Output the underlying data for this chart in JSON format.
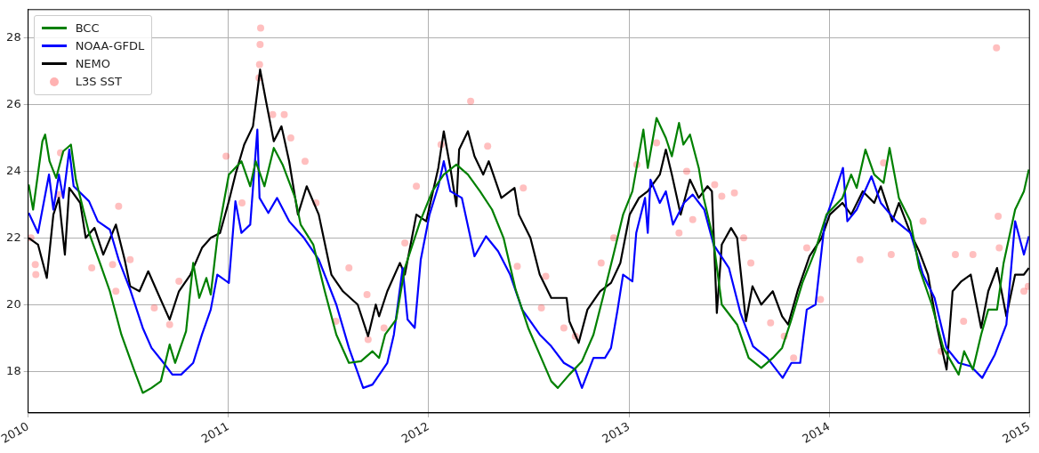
{
  "chart_data": {
    "type": "line",
    "xlim": [
      "2010",
      "2015"
    ],
    "xticks": [
      "2010",
      "2011",
      "2012",
      "2013",
      "2014",
      "2015"
    ],
    "ylim": [
      16.75,
      28.85
    ],
    "yticks": [
      18,
      20,
      22,
      24,
      26,
      28
    ],
    "grid": true,
    "legend": "top left",
    "line_style": "solid",
    "series": [
      {
        "name": "BCC",
        "color": "#008000",
        "x": [
          "2010-01-02",
          "2010-01-10",
          "2010-01-27",
          "2010-02-01",
          "2010-02-09",
          "2010-02-21",
          "2010-03-06",
          "2010-03-20",
          "2010-03-29",
          "2010-04-22",
          "2010-05-13",
          "2010-05-30",
          "2010-06-20",
          "2010-07-13",
          "2010-07-29",
          "2010-08-14",
          "2010-08-31",
          "2010-09-16",
          "2010-09-26",
          "2010-10-16",
          "2010-10-29",
          "2010-11-09",
          "2010-11-22",
          "2010-11-30",
          "2010-12-12",
          "2011-01-02",
          "2011-01-25",
          "2011-02-10",
          "2011-02-20",
          "2011-03-08",
          "2011-03-25",
          "2011-04-10",
          "2011-05-03",
          "2011-05-13",
          "2011-06-05",
          "2011-06-26",
          "2011-07-17",
          "2011-08-09",
          "2011-08-31",
          "2011-09-21",
          "2011-10-03",
          "2011-10-14",
          "2011-11-03",
          "2011-11-19",
          "2011-12-17",
          "2012-01-08",
          "2012-01-29",
          "2012-02-21",
          "2012-03-13",
          "2012-04-04",
          "2012-04-26",
          "2012-05-17",
          "2012-06-08",
          "2012-07-01",
          "2012-07-22",
          "2012-08-12",
          "2012-08-24",
          "2012-09-14",
          "2012-10-07",
          "2012-10-28",
          "2012-11-14",
          "2012-12-05",
          "2012-12-21",
          "2013-01-07",
          "2013-01-27",
          "2013-02-04",
          "2013-02-20",
          "2013-03-09",
          "2013-03-20",
          "2013-04-02",
          "2013-04-10",
          "2013-04-22",
          "2013-05-08",
          "2013-05-17",
          "2013-06-03",
          "2013-06-19",
          "2013-07-17",
          "2013-08-07",
          "2013-08-30",
          "2013-09-20",
          "2013-10-07",
          "2013-10-23",
          "2013-11-13",
          "2013-12-06",
          "2013-12-27",
          "2014-01-25",
          "2014-02-10",
          "2014-02-20",
          "2014-03-08",
          "2014-03-24",
          "2014-04-10",
          "2014-04-21",
          "2014-05-08",
          "2014-05-29",
          "2014-06-14",
          "2014-07-07",
          "2014-07-28",
          "2014-08-25",
          "2014-09-04",
          "2014-09-20",
          "2014-10-05",
          "2014-10-18",
          "2014-11-03",
          "2014-11-15",
          "2014-12-06",
          "2014-12-22",
          "2014-12-31"
        ],
        "values": [
          23.6,
          22.85,
          24.9,
          25.1,
          24.3,
          23.8,
          24.6,
          24.8,
          23.75,
          22.15,
          21.2,
          20.4,
          19.1,
          18.05,
          17.35,
          17.5,
          17.7,
          18.8,
          18.25,
          19.2,
          21.25,
          20.2,
          20.8,
          20.3,
          22.0,
          23.9,
          24.3,
          23.55,
          24.3,
          23.55,
          24.7,
          24.2,
          23.2,
          22.4,
          21.8,
          20.4,
          19.1,
          18.25,
          18.3,
          18.6,
          18.4,
          19.1,
          19.55,
          21.1,
          22.5,
          23.4,
          23.9,
          24.2,
          23.9,
          23.4,
          22.85,
          22.0,
          20.45,
          19.3,
          18.5,
          17.7,
          17.5,
          17.9,
          18.3,
          19.1,
          20.2,
          21.6,
          22.7,
          23.4,
          25.25,
          24.1,
          25.6,
          25.0,
          24.45,
          25.45,
          24.8,
          25.1,
          24.1,
          23.2,
          22.0,
          20.0,
          19.4,
          18.4,
          18.1,
          18.4,
          18.7,
          19.5,
          20.65,
          21.6,
          22.7,
          23.2,
          23.9,
          23.5,
          24.65,
          23.9,
          23.65,
          24.7,
          23.2,
          22.5,
          21.1,
          20.0,
          18.7,
          17.9,
          18.6,
          18.05,
          19.1,
          19.85,
          19.85,
          21.25,
          22.85,
          23.4,
          24.05
        ]
      },
      {
        "name": "NOAA-GFDL",
        "color": "#0000ff",
        "x": [
          "2010-01-02",
          "2010-01-19",
          "2010-02-08",
          "2010-02-16",
          "2010-02-26",
          "2010-03-06",
          "2010-03-17",
          "2010-03-25",
          "2010-04-22",
          "2010-05-08",
          "2010-05-30",
          "2010-06-15",
          "2010-07-06",
          "2010-07-29",
          "2010-08-14",
          "2010-09-05",
          "2010-09-21",
          "2010-10-07",
          "2010-10-29",
          "2010-11-14",
          "2010-11-30",
          "2010-12-12",
          "2011-01-02",
          "2011-01-14",
          "2011-01-25",
          "2011-02-10",
          "2011-02-23",
          "2011-02-27",
          "2011-03-15",
          "2011-03-31",
          "2011-04-22",
          "2011-05-19",
          "2011-06-15",
          "2011-07-17",
          "2011-08-09",
          "2011-09-04",
          "2011-09-21",
          "2011-10-18",
          "2011-10-30",
          "2011-11-15",
          "2011-11-24",
          "2011-12-07",
          "2011-12-18",
          "2012-01-03",
          "2012-01-19",
          "2012-01-29",
          "2012-02-10",
          "2012-03-02",
          "2012-03-25",
          "2012-04-15",
          "2012-05-07",
          "2012-05-29",
          "2012-06-20",
          "2012-07-22",
          "2012-08-12",
          "2012-09-04",
          "2012-09-25",
          "2012-10-07",
          "2012-10-28",
          "2012-11-18",
          "2012-11-29",
          "2012-12-11",
          "2012-12-21",
          "2013-01-07",
          "2013-01-14",
          "2013-01-30",
          "2013-02-04",
          "2013-02-09",
          "2013-02-26",
          "2013-03-09",
          "2013-03-22",
          "2013-04-11",
          "2013-04-27",
          "2013-05-18",
          "2013-06-04",
          "2013-07-02",
          "2013-07-23",
          "2013-08-15",
          "2013-09-10",
          "2013-10-08",
          "2013-10-24",
          "2013-11-09",
          "2013-11-21",
          "2013-12-07",
          "2013-12-24",
          "2014-01-08",
          "2014-01-26",
          "2014-02-03",
          "2014-02-20",
          "2014-03-19",
          "2014-04-05",
          "2014-05-03",
          "2014-05-29",
          "2014-06-21",
          "2014-07-12",
          "2014-08-03",
          "2014-08-25",
          "2014-09-16",
          "2014-10-07",
          "2014-10-30",
          "2014-11-20",
          "2014-12-06",
          "2014-12-22",
          "2014-12-31"
        ],
        "values": [
          22.75,
          22.15,
          23.9,
          22.85,
          23.9,
          23.2,
          24.65,
          23.55,
          23.1,
          22.5,
          22.25,
          21.35,
          20.45,
          19.3,
          18.7,
          18.25,
          17.9,
          17.9,
          18.25,
          19.1,
          19.85,
          20.9,
          20.65,
          23.1,
          22.15,
          22.4,
          25.25,
          23.2,
          22.75,
          23.2,
          22.5,
          22.0,
          21.35,
          20.0,
          18.7,
          17.5,
          17.6,
          18.25,
          19.1,
          21.1,
          19.55,
          19.3,
          21.35,
          22.7,
          23.55,
          24.3,
          23.4,
          23.2,
          21.45,
          22.05,
          21.6,
          20.9,
          19.85,
          19.1,
          18.75,
          18.25,
          18.05,
          17.5,
          18.4,
          18.4,
          18.7,
          19.85,
          20.9,
          20.7,
          22.15,
          23.2,
          22.15,
          23.75,
          23.05,
          23.4,
          22.4,
          23.05,
          23.3,
          22.85,
          21.8,
          21.1,
          19.75,
          18.75,
          18.4,
          17.8,
          18.25,
          18.25,
          19.85,
          20.0,
          22.5,
          23.2,
          24.1,
          22.5,
          22.85,
          23.85,
          23.05,
          22.5,
          22.15,
          20.9,
          20.2,
          18.7,
          18.25,
          18.15,
          17.8,
          18.5,
          19.4,
          22.5,
          21.5,
          22.05
        ]
      },
      {
        "name": "NEMO",
        "color": "#000000",
        "x": [
          "2010-01-02",
          "2010-01-19",
          "2010-02-04",
          "2010-02-16",
          "2010-02-26",
          "2010-03-09",
          "2010-03-17",
          "2010-04-06",
          "2010-04-16",
          "2010-05-02",
          "2010-05-18",
          "2010-06-10",
          "2010-06-26",
          "2010-07-06",
          "2010-07-23",
          "2010-08-08",
          "2010-08-24",
          "2010-09-16",
          "2010-10-03",
          "2010-10-24",
          "2010-11-14",
          "2010-11-30",
          "2010-12-17",
          "2011-01-02",
          "2011-01-14",
          "2011-01-30",
          "2011-02-15",
          "2011-02-28",
          "2011-03-12",
          "2011-03-25",
          "2011-04-08",
          "2011-04-22",
          "2011-05-08",
          "2011-05-24",
          "2011-06-15",
          "2011-07-08",
          "2011-07-29",
          "2011-08-25",
          "2011-09-13",
          "2011-09-27",
          "2011-10-03",
          "2011-10-18",
          "2011-11-10",
          "2011-11-19",
          "2011-12-10",
          "2011-12-28",
          "2012-01-19",
          "2012-01-29",
          "2012-02-10",
          "2012-02-21",
          "2012-02-26",
          "2012-03-13",
          "2012-03-25",
          "2012-04-10",
          "2012-04-20",
          "2012-05-13",
          "2012-06-06",
          "2012-06-14",
          "2012-07-05",
          "2012-07-22",
          "2012-08-12",
          "2012-09-09",
          "2012-09-14",
          "2012-10-01",
          "2012-10-17",
          "2012-11-09",
          "2012-11-29",
          "2012-12-16",
          "2013-01-02",
          "2013-01-19",
          "2013-02-04",
          "2013-02-26",
          "2013-03-09",
          "2013-03-20",
          "2013-04-05",
          "2013-04-22",
          "2013-05-08",
          "2013-05-24",
          "2013-06-01",
          "2013-06-10",
          "2013-06-19",
          "2013-07-06",
          "2013-07-17",
          "2013-08-02",
          "2013-08-14",
          "2013-08-30",
          "2013-09-20",
          "2013-10-07",
          "2013-10-18",
          "2013-11-05",
          "2013-11-26",
          "2013-12-18",
          "2014-01-02",
          "2014-01-25",
          "2014-02-10",
          "2014-03-03",
          "2014-03-24",
          "2014-04-05",
          "2014-04-26",
          "2014-05-08",
          "2014-05-29",
          "2014-06-14",
          "2014-06-30",
          "2014-07-17",
          "2014-08-03",
          "2014-08-14",
          "2014-08-30",
          "2014-09-16",
          "2014-10-05",
          "2014-10-18",
          "2014-11-03",
          "2014-11-20",
          "2014-12-06",
          "2014-12-22",
          "2014-12-31"
        ],
        "values": [
          22.0,
          21.8,
          20.8,
          22.7,
          23.2,
          21.5,
          23.5,
          23.05,
          22.0,
          22.3,
          21.5,
          22.4,
          21.35,
          20.55,
          20.4,
          21.0,
          20.4,
          19.55,
          20.4,
          20.9,
          21.7,
          22.0,
          22.15,
          23.1,
          23.9,
          24.8,
          25.35,
          27.05,
          26.0,
          24.9,
          25.35,
          24.3,
          22.7,
          23.55,
          22.7,
          20.9,
          20.4,
          20.0,
          19.05,
          20.0,
          19.65,
          20.4,
          21.25,
          20.9,
          22.7,
          22.5,
          24.1,
          25.2,
          24.1,
          22.95,
          24.65,
          25.2,
          24.45,
          23.9,
          24.3,
          23.2,
          23.5,
          22.7,
          22.0,
          20.9,
          20.2,
          20.2,
          19.5,
          18.85,
          19.85,
          20.4,
          20.65,
          21.25,
          22.7,
          23.2,
          23.4,
          23.9,
          24.65,
          23.9,
          22.7,
          23.75,
          23.2,
          23.55,
          23.4,
          19.75,
          21.8,
          22.3,
          22.0,
          19.5,
          20.55,
          20.0,
          20.4,
          19.65,
          19.4,
          20.45,
          21.45,
          22.0,
          22.7,
          23.05,
          22.7,
          23.4,
          23.05,
          23.55,
          22.5,
          23.05,
          22.15,
          21.6,
          20.9,
          19.3,
          18.05,
          20.4,
          20.7,
          20.9,
          19.3,
          20.4,
          21.1,
          19.65,
          20.9,
          20.9,
          21.1
        ]
      },
      {
        "name": "L3S SST",
        "type": "scatter",
        "marker": "circle",
        "color": "#ff0000",
        "x": [
          "2010-01-06",
          "2010-01-14",
          "2010-01-15",
          "2010-02-26",
          "2010-03-01",
          "2010-04-27",
          "2010-06-04",
          "2010-06-10",
          "2010-06-15",
          "2010-07-06",
          "2010-08-19",
          "2010-09-16",
          "2010-10-03",
          "2010-12-28",
          "2011-01-26",
          "2011-02-26",
          "2011-02-27",
          "2011-02-28",
          "2011-03-01",
          "2011-03-23",
          "2011-04-13",
          "2011-04-25",
          "2011-05-21",
          "2011-06-10",
          "2011-07-16",
          "2011-08-09",
          "2011-09-11",
          "2011-09-13",
          "2011-10-12",
          "2011-11-19",
          "2011-12-10",
          "2012-01-24",
          "2012-03-18",
          "2012-04-18",
          "2012-06-11",
          "2012-06-22",
          "2012-07-25",
          "2012-08-02",
          "2012-09-04",
          "2012-09-25",
          "2012-11-11",
          "2012-12-04",
          "2013-01-15",
          "2013-02-20",
          "2013-04-02",
          "2013-04-16",
          "2013-04-27",
          "2013-06-06",
          "2013-06-19",
          "2013-07-12",
          "2013-07-29",
          "2013-08-11",
          "2013-09-16",
          "2013-10-11",
          "2013-10-28",
          "2013-11-21",
          "2013-12-16",
          "2014-02-26",
          "2014-04-10",
          "2014-04-24",
          "2014-06-21",
          "2014-07-24",
          "2014-08-19",
          "2014-09-03",
          "2014-09-20",
          "2014-11-02",
          "2014-11-05",
          "2014-11-07",
          "2014-12-22",
          "2014-12-30"
        ],
        "values": [
          22.0,
          21.2,
          20.9,
          23.3,
          24.55,
          21.1,
          21.2,
          20.4,
          22.95,
          21.35,
          19.9,
          19.4,
          20.7,
          24.45,
          23.05,
          26.8,
          27.2,
          27.8,
          28.3,
          25.7,
          25.7,
          25.0,
          24.3,
          23.05,
          19.5,
          21.1,
          20.3,
          18.95,
          19.3,
          21.85,
          23.55,
          24.8,
          26.1,
          24.75,
          21.15,
          23.5,
          19.9,
          20.85,
          19.3,
          19.05,
          21.25,
          22.0,
          24.2,
          24.85,
          22.15,
          24.0,
          22.55,
          23.6,
          23.25,
          23.35,
          22.0,
          21.25,
          19.45,
          19.05,
          18.4,
          21.7,
          20.15,
          21.35,
          24.25,
          21.5,
          22.5,
          18.6,
          21.5,
          19.5,
          21.5,
          27.7,
          22.65,
          21.7,
          20.4,
          20.55
        ]
      }
    ]
  }
}
